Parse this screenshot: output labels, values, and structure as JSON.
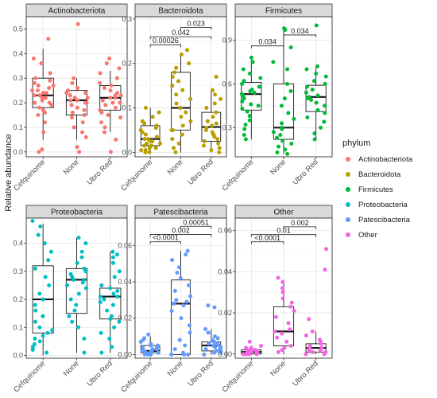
{
  "chart_data": {
    "type": "box",
    "ylabel": "Relative abundance",
    "categories": [
      "Cefquinome",
      "None",
      "Ubro Red"
    ],
    "legend": {
      "title": "phylum",
      "placement": "right",
      "entries": [
        {
          "label": "Actinobacteriota",
          "color": "#F8766D"
        },
        {
          "label": "Bacteroidota",
          "color": "#B79F00"
        },
        {
          "label": "Firmicutes",
          "color": "#00BA38"
        },
        {
          "label": "Proteobacteria",
          "color": "#00BFC4"
        },
        {
          "label": "Patescibacteria",
          "color": "#619CFF"
        },
        {
          "label": "Other",
          "color": "#F564E3"
        }
      ]
    },
    "panels": [
      {
        "title": "Actinobacteriota",
        "color": "#F8766D",
        "ylim": [
          -0.02,
          0.55
        ],
        "yticks": [
          "0.0",
          "0.1",
          "0.2",
          "0.3",
          "0.4",
          "0.5"
        ],
        "boxes": [
          {
            "category": "Cefquinome",
            "q1": 0.18,
            "median": 0.23,
            "q3": 0.3,
            "whisker_low": 0.05,
            "whisker_high": 0.42,
            "points": [
              0.46,
              0.38,
              0.36,
              0.32,
              0.3,
              0.29,
              0.28,
              0.27,
              0.27,
              0.26,
              0.25,
              0.25,
              0.24,
              0.24,
              0.23,
              0.23,
              0.22,
              0.22,
              0.21,
              0.2,
              0.2,
              0.19,
              0.18,
              0.17,
              0.16,
              0.15,
              0.12,
              0.08,
              0.01,
              0.0
            ]
          },
          {
            "category": "None",
            "q1": 0.15,
            "median": 0.21,
            "q3": 0.25,
            "whisker_low": 0.05,
            "whisker_high": 0.3,
            "points": [
              0.52,
              0.3,
              0.28,
              0.26,
              0.25,
              0.24,
              0.24,
              0.23,
              0.22,
              0.22,
              0.21,
              0.21,
              0.2,
              0.2,
              0.19,
              0.18,
              0.17,
              0.16,
              0.15,
              0.14,
              0.12,
              0.1,
              0.08,
              0.06,
              0.02,
              0.0
            ]
          },
          {
            "category": "Ubro Red",
            "q1": 0.17,
            "median": 0.22,
            "q3": 0.27,
            "whisker_low": 0.08,
            "whisker_high": 0.33,
            "points": [
              0.38,
              0.36,
              0.34,
              0.32,
              0.3,
              0.28,
              0.27,
              0.26,
              0.25,
              0.24,
              0.23,
              0.23,
              0.22,
              0.22,
              0.21,
              0.2,
              0.2,
              0.19,
              0.18,
              0.17,
              0.16,
              0.15,
              0.14,
              0.12,
              0.1,
              0.08,
              0.05,
              0.0
            ]
          }
        ],
        "comparisons": []
      },
      {
        "title": "Bacteroidota",
        "color": "#B79F00",
        "ylim": [
          -0.01,
          0.305
        ],
        "yticks": [
          "0.0",
          "0.1",
          "0.2",
          "0.3"
        ],
        "boxes": [
          {
            "category": "Cefquinome",
            "q1": 0.015,
            "median": 0.03,
            "q3": 0.06,
            "whisker_low": 0.0,
            "whisker_high": 0.1,
            "points": [
              0.1,
              0.09,
              0.08,
              0.07,
              0.065,
              0.06,
              0.055,
              0.05,
              0.045,
              0.04,
              0.035,
              0.03,
              0.03,
              0.025,
              0.025,
              0.02,
              0.02,
              0.015,
              0.015,
              0.01,
              0.01,
              0.005,
              0.005,
              0.0,
              0.0
            ]
          },
          {
            "category": "None",
            "q1": 0.05,
            "median": 0.1,
            "q3": 0.18,
            "whisker_low": 0.0,
            "whisker_high": 0.22,
            "points": [
              0.23,
              0.22,
              0.2,
              0.19,
              0.18,
              0.17,
              0.16,
              0.15,
              0.14,
              0.13,
              0.12,
              0.11,
              0.1,
              0.1,
              0.09,
              0.08,
              0.07,
              0.06,
              0.05,
              0.05,
              0.04,
              0.03,
              0.02,
              0.01,
              0.0
            ]
          },
          {
            "category": "Ubro Red",
            "q1": 0.025,
            "median": 0.057,
            "q3": 0.09,
            "whisker_low": 0.0,
            "whisker_high": 0.14,
            "points": [
              0.17,
              0.14,
              0.13,
              0.12,
              0.11,
              0.1,
              0.09,
              0.08,
              0.07,
              0.065,
              0.06,
              0.055,
              0.05,
              0.045,
              0.04,
              0.035,
              0.03,
              0.025,
              0.02,
              0.015,
              0.01,
              0.005,
              0.0
            ]
          }
        ],
        "comparisons": [
          {
            "from": 0,
            "to": 1,
            "label": "0.00026",
            "y": 0.242
          },
          {
            "from": 0,
            "to": 2,
            "label": "0.042",
            "y": 0.26
          },
          {
            "from": 1,
            "to": 2,
            "label": "0.023",
            "y": 0.281
          }
        ]
      },
      {
        "title": "Firmicutes",
        "color": "#00BA38",
        "ylim": [
          0.1,
          1.06
        ],
        "yticks": [
          "0.3",
          "0.6",
          "0.9"
        ],
        "boxes": [
          {
            "category": "Cefquinome",
            "q1": 0.42,
            "median": 0.53,
            "q3": 0.61,
            "whisker_low": 0.22,
            "whisker_high": 0.78,
            "points": [
              0.78,
              0.75,
              0.7,
              0.67,
              0.64,
              0.62,
              0.6,
              0.58,
              0.56,
              0.55,
              0.54,
              0.53,
              0.52,
              0.5,
              0.48,
              0.46,
              0.45,
              0.43,
              0.41,
              0.38,
              0.35,
              0.32,
              0.29,
              0.25,
              0.22
            ]
          },
          {
            "category": "None",
            "q1": 0.22,
            "median": 0.3,
            "q3": 0.6,
            "whisker_low": 0.12,
            "whisker_high": 0.97,
            "points": [
              0.98,
              0.97,
              0.85,
              0.75,
              0.7,
              0.6,
              0.55,
              0.5,
              0.45,
              0.4,
              0.36,
              0.33,
              0.3,
              0.29,
              0.27,
              0.25,
              0.23,
              0.21,
              0.19,
              0.17,
              0.15,
              0.13,
              0.12
            ]
          },
          {
            "category": "Ubro Red",
            "q1": 0.41,
            "median": 0.51,
            "q3": 0.59,
            "whisker_low": 0.22,
            "whisker_high": 0.72,
            "points": [
              1.0,
              0.72,
              0.7,
              0.67,
              0.65,
              0.62,
              0.6,
              0.58,
              0.56,
              0.54,
              0.52,
              0.51,
              0.5,
              0.49,
              0.47,
              0.45,
              0.42,
              0.4,
              0.37,
              0.34,
              0.3,
              0.26,
              0.22
            ]
          }
        ],
        "comparisons": [
          {
            "from": 0,
            "to": 1,
            "label": "0.034",
            "y": 0.86
          },
          {
            "from": 1,
            "to": 2,
            "label": "0.034",
            "y": 0.935
          }
        ]
      },
      {
        "title": "Proteobacteria",
        "color": "#00BFC4",
        "ylim": [
          -0.01,
          0.49
        ],
        "yticks": [
          "0.0",
          "0.1",
          "0.2",
          "0.3",
          "0.4"
        ],
        "boxes": [
          {
            "category": "Cefquinome",
            "q1": 0.08,
            "median": 0.2,
            "q3": 0.32,
            "whisker_low": 0.0,
            "whisker_high": 0.47,
            "points": [
              0.48,
              0.46,
              0.43,
              0.4,
              0.37,
              0.34,
              0.31,
              0.28,
              0.25,
              0.22,
              0.2,
              0.18,
              0.16,
              0.14,
              0.12,
              0.1,
              0.09,
              0.08,
              0.07,
              0.06,
              0.05,
              0.04,
              0.03,
              0.02,
              0.01
            ]
          },
          {
            "category": "None",
            "q1": 0.15,
            "median": 0.27,
            "q3": 0.31,
            "whisker_low": 0.01,
            "whisker_high": 0.42,
            "points": [
              0.42,
              0.4,
              0.37,
              0.35,
              0.33,
              0.31,
              0.3,
              0.29,
              0.28,
              0.27,
              0.27,
              0.26,
              0.25,
              0.24,
              0.22,
              0.2,
              0.18,
              0.16,
              0.14,
              0.12,
              0.1,
              0.06,
              0.01
            ]
          },
          {
            "category": "Ubro Red",
            "q1": 0.13,
            "median": 0.21,
            "q3": 0.24,
            "whisker_low": 0.01,
            "whisker_high": 0.37,
            "points": [
              0.37,
              0.36,
              0.35,
              0.33,
              0.3,
              0.28,
              0.25,
              0.24,
              0.23,
              0.22,
              0.21,
              0.21,
              0.2,
              0.19,
              0.18,
              0.16,
              0.14,
              0.13,
              0.12,
              0.1,
              0.08,
              0.06,
              0.03,
              0.01
            ]
          }
        ],
        "comparisons": []
      },
      {
        "title": "Patescibacteria",
        "color": "#619CFF",
        "ylim": [
          -0.002,
          0.075
        ],
        "yticks": [
          "0.00",
          "0.02",
          "0.04",
          "0.06"
        ],
        "boxes": [
          {
            "category": "Cefquinome",
            "q1": 0.001,
            "median": 0.002,
            "q3": 0.005,
            "whisker_low": 0.0,
            "whisker_high": 0.01,
            "points": [
              0.011,
              0.009,
              0.008,
              0.007,
              0.006,
              0.005,
              0.005,
              0.004,
              0.004,
              0.003,
              0.003,
              0.002,
              0.002,
              0.002,
              0.001,
              0.001,
              0.001,
              0.0,
              0.0,
              0.0,
              0.0
            ]
          },
          {
            "category": "None",
            "q1": 0.0,
            "median": 0.028,
            "q3": 0.041,
            "whisker_low": 0.0,
            "whisker_high": 0.057,
            "points": [
              0.057,
              0.055,
              0.052,
              0.048,
              0.045,
              0.042,
              0.038,
              0.035,
              0.032,
              0.03,
              0.029,
              0.028,
              0.027,
              0.024,
              0.02,
              0.016,
              0.012,
              0.008,
              0.005,
              0.003,
              0.001,
              0.0,
              0.0,
              0.0
            ]
          },
          {
            "category": "Ubro Red",
            "q1": 0.002,
            "median": 0.005,
            "q3": 0.007,
            "whisker_low": 0.0,
            "whisker_high": 0.014,
            "points": [
              0.027,
              0.026,
              0.014,
              0.012,
              0.01,
              0.009,
              0.008,
              0.007,
              0.006,
              0.006,
              0.005,
              0.005,
              0.004,
              0.004,
              0.003,
              0.003,
              0.002,
              0.002,
              0.001,
              0.001,
              0.0
            ]
          }
        ],
        "comparisons": [
          {
            "from": 0,
            "to": 1,
            "label": "<0.0001",
            "y": 0.062
          },
          {
            "from": 0,
            "to": 2,
            "label": "0.002",
            "y": 0.066
          },
          {
            "from": 1,
            "to": 2,
            "label": "0.00051",
            "y": 0.0705
          }
        ]
      },
      {
        "title": "Other",
        "color": "#F564E3",
        "ylim": [
          -0.002,
          0.066
        ],
        "yticks": [
          "0.00",
          "0.02",
          "0.04",
          "0.06"
        ],
        "boxes": [
          {
            "category": "Cefquinome",
            "q1": 0.0,
            "median": 0.001,
            "q3": 0.002,
            "whisker_low": 0.0,
            "whisker_high": 0.004,
            "points": [
              0.006,
              0.004,
              0.003,
              0.003,
              0.002,
              0.002,
              0.002,
              0.001,
              0.001,
              0.001,
              0.001,
              0.0,
              0.0,
              0.0,
              0.0,
              0.0
            ]
          },
          {
            "category": "None",
            "q1": 0.004,
            "median": 0.011,
            "q3": 0.023,
            "whisker_low": 0.0,
            "whisker_high": 0.036,
            "points": [
              0.037,
              0.035,
              0.032,
              0.03,
              0.027,
              0.025,
              0.023,
              0.021,
              0.018,
              0.015,
              0.012,
              0.011,
              0.01,
              0.008,
              0.006,
              0.004,
              0.003,
              0.002,
              0.001
            ]
          },
          {
            "category": "Ubro Red",
            "q1": 0.001,
            "median": 0.003,
            "q3": 0.005,
            "whisker_low": 0.0,
            "whisker_high": 0.011,
            "points": [
              0.051,
              0.041,
              0.017,
              0.011,
              0.009,
              0.007,
              0.006,
              0.005,
              0.004,
              0.003,
              0.003,
              0.002,
              0.002,
              0.001,
              0.001,
              0.0,
              0.0
            ]
          }
        ],
        "comparisons": [
          {
            "from": 0,
            "to": 1,
            "label": "<0.0001",
            "y": 0.0545
          },
          {
            "from": 0,
            "to": 2,
            "label": "0.01",
            "y": 0.058
          },
          {
            "from": 1,
            "to": 2,
            "label": "0.002",
            "y": 0.0618
          }
        ]
      }
    ]
  }
}
